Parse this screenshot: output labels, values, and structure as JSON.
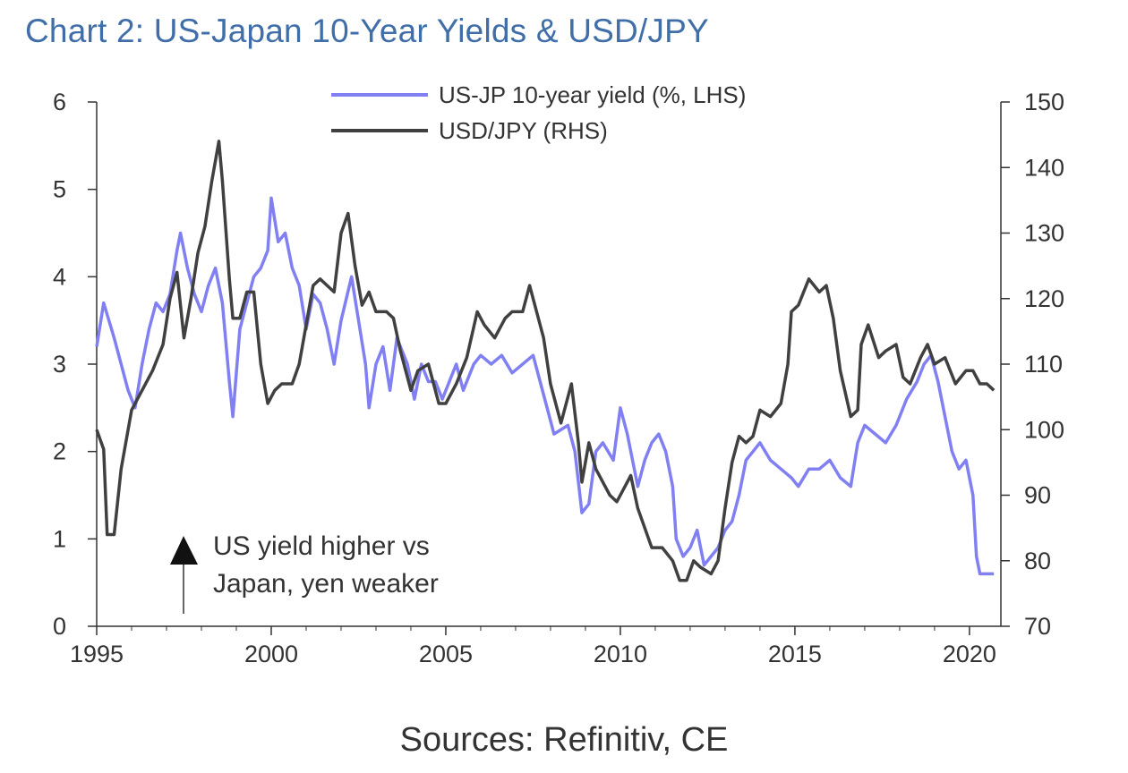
{
  "chart_data": {
    "type": "line",
    "title": "Chart 2: US-Japan 10-Year Yields & USD/JPY",
    "source": "Sources: Refinitiv, CE",
    "x_axis": {
      "range": [
        1995,
        2020.9
      ],
      "ticks": [
        "1995",
        "2000",
        "2005",
        "2010",
        "2015",
        "2020"
      ]
    },
    "y_left": {
      "range": [
        0,
        6
      ],
      "ticks": [
        "0",
        "1",
        "2",
        "3",
        "4",
        "5",
        "6"
      ]
    },
    "y_right": {
      "range": [
        70,
        150
      ],
      "ticks": [
        "70",
        "80",
        "90",
        "100",
        "110",
        "120",
        "130",
        "140",
        "150"
      ]
    },
    "grid": false,
    "legend_position": "top-center",
    "annotation": {
      "line1": "US yield higher vs",
      "line2": "Japan, yen weaker"
    },
    "series": [
      {
        "name": "US-JP 10-year yield (%, LHS)",
        "axis": "left",
        "color": "#8080f2",
        "points": [
          [
            1995.0,
            3.2
          ],
          [
            1995.2,
            3.7
          ],
          [
            1995.5,
            3.3
          ],
          [
            1995.7,
            3.0
          ],
          [
            1995.9,
            2.7
          ],
          [
            1996.1,
            2.5
          ],
          [
            1996.3,
            3.0
          ],
          [
            1996.5,
            3.4
          ],
          [
            1996.7,
            3.7
          ],
          [
            1996.9,
            3.6
          ],
          [
            1997.1,
            3.8
          ],
          [
            1997.3,
            4.3
          ],
          [
            1997.4,
            4.5
          ],
          [
            1997.6,
            4.1
          ],
          [
            1997.8,
            3.8
          ],
          [
            1998.0,
            3.6
          ],
          [
            1998.2,
            3.9
          ],
          [
            1998.4,
            4.1
          ],
          [
            1998.6,
            3.7
          ],
          [
            1998.8,
            2.8
          ],
          [
            1998.9,
            2.4
          ],
          [
            1999.1,
            3.4
          ],
          [
            1999.3,
            3.7
          ],
          [
            1999.5,
            4.0
          ],
          [
            1999.7,
            4.1
          ],
          [
            1999.9,
            4.3
          ],
          [
            2000.0,
            4.9
          ],
          [
            2000.2,
            4.4
          ],
          [
            2000.4,
            4.5
          ],
          [
            2000.6,
            4.1
          ],
          [
            2000.8,
            3.9
          ],
          [
            2001.0,
            3.4
          ],
          [
            2001.2,
            3.8
          ],
          [
            2001.4,
            3.7
          ],
          [
            2001.6,
            3.4
          ],
          [
            2001.8,
            3.0
          ],
          [
            2002.0,
            3.5
          ],
          [
            2002.3,
            4.0
          ],
          [
            2002.5,
            3.5
          ],
          [
            2002.7,
            3.0
          ],
          [
            2002.8,
            2.5
          ],
          [
            2003.0,
            3.0
          ],
          [
            2003.2,
            3.2
          ],
          [
            2003.4,
            2.7
          ],
          [
            2003.6,
            3.3
          ],
          [
            2003.9,
            3.0
          ],
          [
            2004.1,
            2.6
          ],
          [
            2004.3,
            3.0
          ],
          [
            2004.5,
            2.8
          ],
          [
            2004.7,
            2.8
          ],
          [
            2004.9,
            2.6
          ],
          [
            2005.1,
            2.8
          ],
          [
            2005.3,
            3.0
          ],
          [
            2005.5,
            2.7
          ],
          [
            2005.8,
            3.0
          ],
          [
            2006.0,
            3.1
          ],
          [
            2006.3,
            3.0
          ],
          [
            2006.6,
            3.1
          ],
          [
            2006.9,
            2.9
          ],
          [
            2007.2,
            3.0
          ],
          [
            2007.5,
            3.1
          ],
          [
            2007.7,
            2.8
          ],
          [
            2007.9,
            2.5
          ],
          [
            2008.1,
            2.2
          ],
          [
            2008.5,
            2.3
          ],
          [
            2008.7,
            2.0
          ],
          [
            2008.9,
            1.3
          ],
          [
            2009.1,
            1.4
          ],
          [
            2009.3,
            2.0
          ],
          [
            2009.5,
            2.1
          ],
          [
            2009.8,
            1.9
          ],
          [
            2010.0,
            2.5
          ],
          [
            2010.2,
            2.2
          ],
          [
            2010.5,
            1.6
          ],
          [
            2010.7,
            1.9
          ],
          [
            2010.9,
            2.1
          ],
          [
            2011.1,
            2.2
          ],
          [
            2011.3,
            2.0
          ],
          [
            2011.5,
            1.6
          ],
          [
            2011.6,
            1.0
          ],
          [
            2011.8,
            0.8
          ],
          [
            2012.0,
            0.9
          ],
          [
            2012.2,
            1.1
          ],
          [
            2012.4,
            0.7
          ],
          [
            2012.6,
            0.8
          ],
          [
            2012.8,
            0.9
          ],
          [
            2013.0,
            1.1
          ],
          [
            2013.2,
            1.2
          ],
          [
            2013.4,
            1.5
          ],
          [
            2013.6,
            1.9
          ],
          [
            2013.8,
            2.0
          ],
          [
            2014.0,
            2.1
          ],
          [
            2014.3,
            1.9
          ],
          [
            2014.6,
            1.8
          ],
          [
            2014.9,
            1.7
          ],
          [
            2015.1,
            1.6
          ],
          [
            2015.4,
            1.8
          ],
          [
            2015.7,
            1.8
          ],
          [
            2016.0,
            1.9
          ],
          [
            2016.3,
            1.7
          ],
          [
            2016.6,
            1.6
          ],
          [
            2016.8,
            2.1
          ],
          [
            2017.0,
            2.3
          ],
          [
            2017.3,
            2.2
          ],
          [
            2017.6,
            2.1
          ],
          [
            2017.9,
            2.3
          ],
          [
            2018.2,
            2.6
          ],
          [
            2018.5,
            2.8
          ],
          [
            2018.7,
            3.0
          ],
          [
            2018.9,
            3.1
          ],
          [
            2019.1,
            2.8
          ],
          [
            2019.3,
            2.4
          ],
          [
            2019.5,
            2.0
          ],
          [
            2019.7,
            1.8
          ],
          [
            2019.9,
            1.9
          ],
          [
            2020.1,
            1.5
          ],
          [
            2020.2,
            0.8
          ],
          [
            2020.3,
            0.6
          ],
          [
            2020.5,
            0.6
          ],
          [
            2020.7,
            0.6
          ]
        ]
      },
      {
        "name": "USD/JPY (RHS)",
        "axis": "right",
        "color": "#404040",
        "points": [
          [
            1995.0,
            100
          ],
          [
            1995.2,
            97
          ],
          [
            1995.3,
            84
          ],
          [
            1995.5,
            84
          ],
          [
            1995.7,
            94
          ],
          [
            1996.0,
            103
          ],
          [
            1996.3,
            106
          ],
          [
            1996.6,
            109
          ],
          [
            1996.9,
            113
          ],
          [
            1997.1,
            120
          ],
          [
            1997.3,
            124
          ],
          [
            1997.5,
            114
          ],
          [
            1997.7,
            120
          ],
          [
            1997.9,
            127
          ],
          [
            1998.1,
            131
          ],
          [
            1998.3,
            138
          ],
          [
            1998.5,
            144
          ],
          [
            1998.6,
            138
          ],
          [
            1998.8,
            123
          ],
          [
            1998.9,
            117
          ],
          [
            1999.1,
            117
          ],
          [
            1999.3,
            121
          ],
          [
            1999.5,
            121
          ],
          [
            1999.7,
            110
          ],
          [
            1999.9,
            104
          ],
          [
            2000.1,
            106
          ],
          [
            2000.3,
            107
          ],
          [
            2000.6,
            107
          ],
          [
            2000.8,
            110
          ],
          [
            2001.0,
            116
          ],
          [
            2001.2,
            122
          ],
          [
            2001.4,
            123
          ],
          [
            2001.6,
            122
          ],
          [
            2001.8,
            121
          ],
          [
            2002.0,
            130
          ],
          [
            2002.2,
            133
          ],
          [
            2002.4,
            125
          ],
          [
            2002.6,
            119
          ],
          [
            2002.8,
            121
          ],
          [
            2003.0,
            118
          ],
          [
            2003.3,
            118
          ],
          [
            2003.5,
            117
          ],
          [
            2003.7,
            112
          ],
          [
            2004.0,
            106
          ],
          [
            2004.2,
            109
          ],
          [
            2004.5,
            110
          ],
          [
            2004.8,
            104
          ],
          [
            2005.0,
            104
          ],
          [
            2005.3,
            107
          ],
          [
            2005.6,
            111
          ],
          [
            2005.9,
            118
          ],
          [
            2006.1,
            116
          ],
          [
            2006.4,
            114
          ],
          [
            2006.7,
            117
          ],
          [
            2006.9,
            118
          ],
          [
            2007.2,
            118
          ],
          [
            2007.4,
            122
          ],
          [
            2007.6,
            118
          ],
          [
            2007.8,
            114
          ],
          [
            2008.0,
            107
          ],
          [
            2008.3,
            101
          ],
          [
            2008.6,
            107
          ],
          [
            2008.8,
            98
          ],
          [
            2008.9,
            92
          ],
          [
            2009.1,
            98
          ],
          [
            2009.3,
            94
          ],
          [
            2009.5,
            92
          ],
          [
            2009.7,
            90
          ],
          [
            2009.9,
            89
          ],
          [
            2010.1,
            91
          ],
          [
            2010.3,
            93
          ],
          [
            2010.5,
            88
          ],
          [
            2010.7,
            85
          ],
          [
            2010.9,
            82
          ],
          [
            2011.2,
            82
          ],
          [
            2011.5,
            80
          ],
          [
            2011.7,
            77
          ],
          [
            2011.9,
            77
          ],
          [
            2012.1,
            80
          ],
          [
            2012.3,
            79
          ],
          [
            2012.6,
            78
          ],
          [
            2012.8,
            80
          ],
          [
            2013.0,
            88
          ],
          [
            2013.2,
            95
          ],
          [
            2013.4,
            99
          ],
          [
            2013.6,
            98
          ],
          [
            2013.8,
            99
          ],
          [
            2014.0,
            103
          ],
          [
            2014.3,
            102
          ],
          [
            2014.6,
            104
          ],
          [
            2014.8,
            110
          ],
          [
            2014.9,
            118
          ],
          [
            2015.1,
            119
          ],
          [
            2015.4,
            123
          ],
          [
            2015.7,
            121
          ],
          [
            2015.9,
            122
          ],
          [
            2016.1,
            117
          ],
          [
            2016.3,
            109
          ],
          [
            2016.6,
            102
          ],
          [
            2016.8,
            103
          ],
          [
            2016.9,
            113
          ],
          [
            2017.1,
            116
          ],
          [
            2017.4,
            111
          ],
          [
            2017.6,
            112
          ],
          [
            2017.9,
            113
          ],
          [
            2018.1,
            108
          ],
          [
            2018.3,
            107
          ],
          [
            2018.6,
            111
          ],
          [
            2018.8,
            113
          ],
          [
            2019.0,
            110
          ],
          [
            2019.3,
            111
          ],
          [
            2019.6,
            107
          ],
          [
            2019.9,
            109
          ],
          [
            2020.1,
            109
          ],
          [
            2020.3,
            107
          ],
          [
            2020.5,
            107
          ],
          [
            2020.7,
            106
          ]
        ]
      }
    ]
  }
}
